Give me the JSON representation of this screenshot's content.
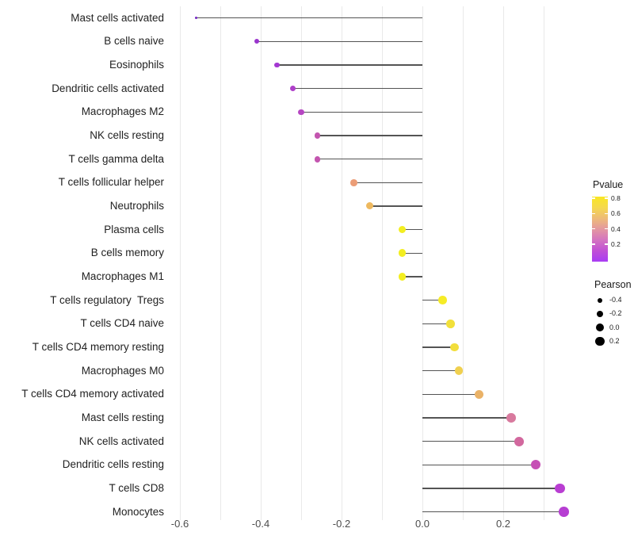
{
  "chart_data": {
    "type": "scatter",
    "style": "lollipop",
    "orientation": "horizontal",
    "title": "",
    "xlabel": "",
    "ylabel": "",
    "xlim": [
      -0.617,
      0.363
    ],
    "baseline": 0,
    "grid": "vertical-only",
    "gridline_values": [
      -0.6,
      -0.5,
      -0.4,
      -0.3,
      -0.2,
      -0.1,
      0.0,
      0.1,
      0.2,
      0.3
    ],
    "x_ticks": [
      {
        "value": -0.6,
        "label": "-0.6"
      },
      {
        "value": -0.4,
        "label": "-0.4"
      },
      {
        "value": -0.2,
        "label": "-0.2"
      },
      {
        "value": 0.0,
        "label": "0.0"
      },
      {
        "value": 0.2,
        "label": "0.2"
      }
    ],
    "points": [
      {
        "category": "Mast cells activated",
        "pearson": -0.56,
        "color": "#7326c3"
      },
      {
        "category": "B cells naive",
        "pearson": -0.41,
        "color": "#9a35cd"
      },
      {
        "category": "Eosinophils",
        "pearson": -0.36,
        "color": "#a438d2"
      },
      {
        "category": "Dendritic cells activated",
        "pearson": -0.32,
        "color": "#ae3fc9"
      },
      {
        "category": "Macrophages M2",
        "pearson": -0.3,
        "color": "#b646c2"
      },
      {
        "category": "NK cells resting",
        "pearson": -0.26,
        "color": "#c355af"
      },
      {
        "category": "T cells gamma delta",
        "pearson": -0.26,
        "color": "#c355af"
      },
      {
        "category": "T cells follicular helper",
        "pearson": -0.17,
        "color": "#eb9d77"
      },
      {
        "category": "Neutrophils",
        "pearson": -0.13,
        "color": "#eeb95f"
      },
      {
        "category": "Plasma cells",
        "pearson": -0.05,
        "color": "#f3ee21"
      },
      {
        "category": "B cells memory",
        "pearson": -0.05,
        "color": "#f3ee21"
      },
      {
        "category": "Macrophages M1",
        "pearson": -0.05,
        "color": "#f3ee21"
      },
      {
        "category": "T cells regulatory  Tregs",
        "pearson": 0.05,
        "color": "#f6ec26"
      },
      {
        "category": "T cells CD4 naive",
        "pearson": 0.07,
        "color": "#f2e03a"
      },
      {
        "category": "T cells CD4 memory resting",
        "pearson": 0.08,
        "color": "#f2de3c"
      },
      {
        "category": "Macrophages M0",
        "pearson": 0.09,
        "color": "#f0d04f"
      },
      {
        "category": "T cells CD4 memory activated",
        "pearson": 0.14,
        "color": "#eab267"
      },
      {
        "category": "Mast cells resting",
        "pearson": 0.22,
        "color": "#d87a9e"
      },
      {
        "category": "NK cells activated",
        "pearson": 0.24,
        "color": "#d2689e"
      },
      {
        "category": "Dendritic cells resting",
        "pearson": 0.28,
        "color": "#c64fb5"
      },
      {
        "category": "T cells CD8",
        "pearson": 0.34,
        "color": "#b93ed2"
      },
      {
        "category": "Monocytes",
        "pearson": 0.35,
        "color": "#b63ed2"
      }
    ],
    "legend_pvalue": {
      "title": "Pvalue",
      "ticks": [
        {
          "value": 0.8,
          "label": "0.8"
        },
        {
          "value": 0.6,
          "label": "0.6"
        },
        {
          "value": 0.4,
          "label": "0.4"
        },
        {
          "value": 0.2,
          "label": "0.2"
        }
      ],
      "gradient_bottom_to_top": [
        "#a93df3",
        "#c050d6",
        "#d474c0",
        "#e397a0",
        "#eebb78",
        "#f5d94d",
        "#f9e723"
      ]
    },
    "legend_pearson": {
      "title": "Pearson",
      "ticks": [
        {
          "value": -0.4,
          "label": "-0.4"
        },
        {
          "value": -0.2,
          "label": "-0.2"
        },
        {
          "value": 0.0,
          "label": "0.0"
        },
        {
          "value": 0.2,
          "label": "0.2"
        }
      ],
      "dot_color": "#000000"
    }
  },
  "colors": {
    "background": "#ffffff",
    "grid": "#e9e9e9",
    "segment": "#454545",
    "axis_text": "#4d4d4d",
    "label_text": "#222222"
  }
}
